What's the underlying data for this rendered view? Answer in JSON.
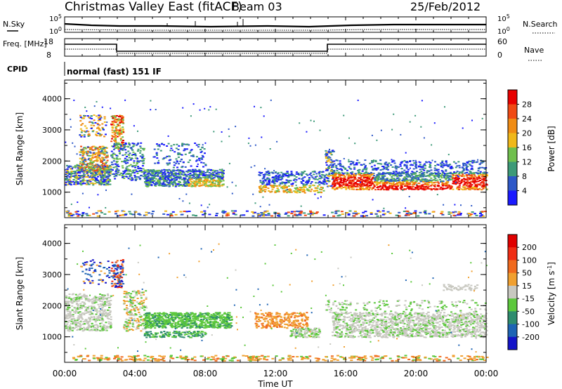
{
  "header": {
    "title": "Christmas Valley East (fitACF)",
    "beam": "Beam 03",
    "date": "25/Feb/2012"
  },
  "top_panels": {
    "nsky_label": "N.Sky",
    "nsky_ticks": [
      "10^5",
      "10^0"
    ],
    "nsearch_label": "N.Search",
    "nsearch_ticks": [
      "10^5",
      "10^0"
    ],
    "freq_label": "Freq. [MHz]",
    "freq_ticks": [
      "18",
      "8"
    ],
    "nave_label": "Nave",
    "nave_ticks": [
      "60",
      "0"
    ],
    "cpid_label": "CPID",
    "cpid_text": "normal (fast) 151 IF"
  },
  "chart_data": [
    {
      "type": "heatmap",
      "name": "power",
      "ylabel": "Slant Range [km]",
      "yticks": [
        1000,
        2000,
        3000,
        4000
      ],
      "ylim": [
        180,
        4600
      ],
      "xlim": [
        0,
        24
      ],
      "colorbar_label": "Power [dB]",
      "colorbar_ticks": [
        "4",
        "8",
        "12",
        "16",
        "20",
        "24",
        "28"
      ],
      "colors": [
        "#1a1aff",
        "#2d58c8",
        "#3d9a78",
        "#6fbf4d",
        "#f0b81a",
        "#f08c14",
        "#f04a14",
        "#e80000"
      ]
    },
    {
      "type": "heatmap",
      "name": "velocity",
      "ylabel": "Slant Range [km]",
      "yticks": [
        1000,
        2000,
        3000,
        4000
      ],
      "ylim": [
        180,
        4600
      ],
      "xlim": [
        0,
        24
      ],
      "colorbar_label": "Velocity [m s^-1]",
      "colorbar_ticks": [
        "200",
        "100",
        "50",
        "15",
        "-15",
        "-50",
        "-100",
        "-200"
      ],
      "colors": [
        "#1414c8",
        "#1e64b4",
        "#2e8c6e",
        "#5cc83c",
        "#c8c8c0",
        "#f0a030",
        "#f06a1e",
        "#f02d14",
        "#e00000"
      ]
    }
  ],
  "x_axis": {
    "ticks": [
      "00:00",
      "04:00",
      "08:00",
      "12:00",
      "16:00",
      "20:00",
      "00:00"
    ],
    "label": "Time UT"
  }
}
